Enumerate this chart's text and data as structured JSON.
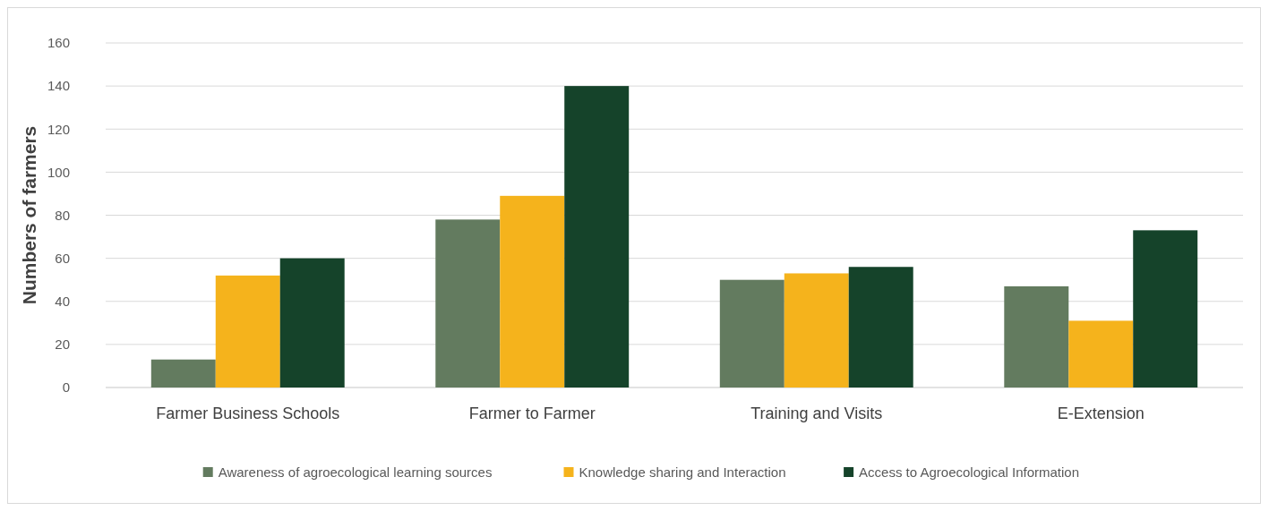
{
  "chart_data": {
    "type": "bar",
    "ylabel": "Numbers of farmers",
    "categories": [
      "Farmer Business Schools",
      "Farmer to Farmer",
      "Training and Visits",
      "E-Extension"
    ],
    "series": [
      {
        "name": "Awareness of agroecological learning sources",
        "color": "#637b5f",
        "values": [
          13,
          78,
          50,
          47
        ]
      },
      {
        "name": "Knowledge sharing and Interaction",
        "color": "#f5b31c",
        "values": [
          52,
          89,
          53,
          31
        ]
      },
      {
        "name": "Access to Agroecological Information",
        "color": "#15432a",
        "values": [
          60,
          140,
          56,
          73
        ]
      }
    ],
    "ylim": [
      0,
      160
    ],
    "yticks": [
      0,
      20,
      40,
      60,
      80,
      100,
      120,
      140,
      160
    ],
    "grid": "y",
    "legend": "bottom"
  }
}
